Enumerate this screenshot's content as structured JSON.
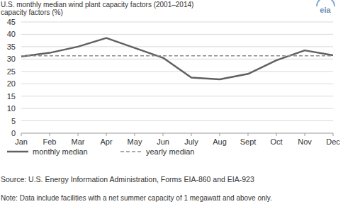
{
  "logo": "eia",
  "chart_data": {
    "type": "line",
    "title": "U.S. monthly median wind plant capacity factors (2001–2014)",
    "y_label": "capacity factors (%)",
    "categories": [
      "Jan",
      "Feb",
      "Mar",
      "Apr",
      "May",
      "Jun",
      "July",
      "Aug",
      "Sept",
      "Oct",
      "Nov",
      "Dec"
    ],
    "series": [
      {
        "name": "monthly median",
        "color": "#606060",
        "line_style": "solid",
        "values": [
          31,
          32.5,
          35,
          38.5,
          34.5,
          30.5,
          22.5,
          21.8,
          24,
          29.5,
          33.5,
          31.5
        ]
      },
      {
        "name": "yearly median",
        "color": "#8c8c8c",
        "line_style": "dashed",
        "values": [
          31.3,
          31.3,
          31.3,
          31.3,
          31.3,
          31.3,
          31.3,
          31.3,
          31.3,
          31.3,
          31.3,
          31.3
        ]
      }
    ],
    "ylim": [
      0,
      45
    ],
    "yticks": [
      0,
      5,
      10,
      15,
      20,
      25,
      30,
      35,
      40,
      45
    ],
    "grid": true,
    "legend": "bottom-left",
    "source": "Source: U.S. Energy Information Administration, Forms EIA-860 and EIA-923",
    "note": "Note: Data include facilities with a net summer capacity of 1 megawatt and above only."
  }
}
